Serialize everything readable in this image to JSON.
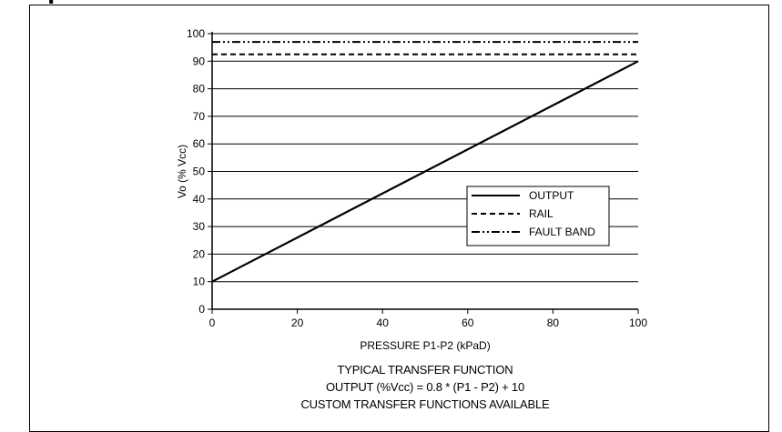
{
  "header": {
    "text": "p"
  },
  "chart_data": {
    "type": "line",
    "xlabel": "PRESSURE P1-P2 (kPaD)",
    "ylabel": "Vo (% Vcc)",
    "xlim": [
      0,
      100
    ],
    "ylim": [
      0,
      100
    ],
    "x_ticks": [
      0,
      20,
      40,
      60,
      80,
      100
    ],
    "y_ticks": [
      0,
      10,
      20,
      30,
      40,
      50,
      60,
      70,
      80,
      90,
      100
    ],
    "grid": "horizontal",
    "legend_position": "lower-right",
    "series": [
      {
        "name": "OUTPUT",
        "style": "solid",
        "x": [
          0,
          100
        ],
        "y": [
          10,
          90
        ]
      },
      {
        "name": "RAIL",
        "style": "dashed",
        "x": [
          0,
          100
        ],
        "y": [
          92.5,
          92.5
        ]
      },
      {
        "name": "FAULT BAND",
        "style": "dash-dot-dot",
        "x": [
          0,
          100
        ],
        "y": [
          97,
          97
        ]
      }
    ]
  },
  "captions": {
    "line1": "TYPICAL TRANSFER FUNCTION",
    "line2": "OUTPUT (%Vcc) = 0.8 * (P1 - P2) + 10",
    "line3": "CUSTOM TRANSFER FUNCTIONS AVAILABLE"
  },
  "colors": {
    "line": "#000000",
    "background": "#ffffff"
  }
}
